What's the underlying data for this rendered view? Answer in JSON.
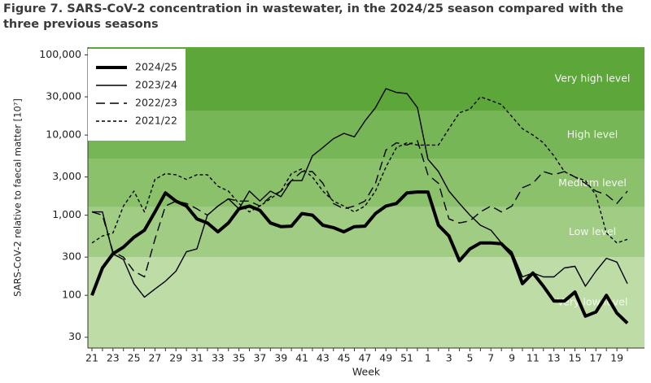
{
  "chart_data": {
    "type": "line",
    "title": "Figure 7. SARS-CoV-2 concentration in wastewater, in the 2024/25 season compared with the three previous seasons",
    "x_label": "Week",
    "y_label": "SARS-CoV-2 relative to faecal matter [10⁷]",
    "log_scale": true,
    "legend": "top-left",
    "categories": [
      "21",
      null,
      "23",
      null,
      "25",
      null,
      "27",
      null,
      "29",
      null,
      "31",
      null,
      "33",
      null,
      "35",
      null,
      "37",
      null,
      "39",
      null,
      "41",
      null,
      "43",
      null,
      "45",
      null,
      "47",
      null,
      "49",
      null,
      "51",
      null,
      "1",
      null,
      "3",
      null,
      "5",
      null,
      "7",
      null,
      "9",
      null,
      "11",
      null,
      "13",
      null,
      "15",
      null,
      "17",
      null,
      "19",
      null
    ],
    "ylim": [
      22,
      125000
    ],
    "yticks": [
      30,
      100,
      300,
      {
        "value": 1000,
        "label": "1,000"
      },
      {
        "value": 3000,
        "label": "3,000"
      },
      {
        "value": 10000,
        "label": "10,000"
      },
      {
        "value": 30000,
        "label": "30,000"
      },
      {
        "value": 100000,
        "label": "100,000"
      }
    ],
    "bands": [
      {
        "label": "Very low level",
        "from": 22,
        "to": 300,
        "color": "#bddca6"
      },
      {
        "label": "Low level",
        "from": 300,
        "to": 1260,
        "color": "#a0cc84"
      },
      {
        "label": "Medium level",
        "from": 1260,
        "to": 5000,
        "color": "#8cc16c"
      },
      {
        "label": "High level",
        "from": 5000,
        "to": 20000,
        "color": "#77b656"
      },
      {
        "label": "Very high level",
        "from": 20000,
        "to": 125000,
        "color": "#5da73a"
      }
    ],
    "series": [
      {
        "name": "2024/25",
        "color": "#000000",
        "line_style": "solid",
        "line_width": "thick",
        "values": [
          100,
          220,
          330,
          400,
          530,
          650,
          1100,
          1900,
          1500,
          1300,
          900,
          800,
          620,
          800,
          1200,
          1300,
          1150,
          800,
          720,
          730,
          1050,
          1000,
          750,
          700,
          620,
          720,
          730,
          1050,
          1300,
          1400,
          1900,
          1950,
          1950,
          750,
          550,
          270,
          380,
          450,
          450,
          440,
          320,
          140,
          190,
          130,
          85,
          85,
          110,
          55,
          62,
          100,
          60,
          45
        ]
      },
      {
        "name": "2023/24",
        "color": "#000000",
        "line_style": "solid",
        "line_width": "thin",
        "values": [
          1100,
          1100,
          330,
          280,
          140,
          95,
          120,
          150,
          200,
          350,
          380,
          1000,
          1300,
          1600,
          1200,
          2000,
          1500,
          2000,
          1700,
          2700,
          2700,
          5500,
          7000,
          9000,
          10500,
          9500,
          15000,
          22000,
          38000,
          34000,
          33000,
          22000,
          5000,
          3500,
          2000,
          1400,
          1000,
          750,
          650,
          450,
          350,
          170,
          190,
          170,
          170,
          220,
          230,
          130,
          200,
          290,
          260,
          140
        ]
      },
      {
        "name": "2022/23",
        "color": "#000000",
        "line_style": "long-dash",
        "line_width": "thin",
        "values": [
          1100,
          1000,
          350,
          300,
          200,
          170,
          500,
          1300,
          1500,
          1400,
          1200,
          1000,
          1300,
          1600,
          1500,
          1500,
          1300,
          1700,
          2000,
          2700,
          3500,
          3500,
          2500,
          1400,
          1200,
          1300,
          1500,
          2500,
          6500,
          8000,
          7500,
          8500,
          3200,
          2500,
          900,
          800,
          850,
          1100,
          1300,
          1100,
          1300,
          2200,
          2500,
          3500,
          3200,
          3500,
          3000,
          2500,
          2000,
          1800,
          1400,
          2000
        ]
      },
      {
        "name": "2021/22",
        "color": "#000000",
        "line_style": "short-dash",
        "line_width": "thin",
        "values": [
          450,
          550,
          600,
          1300,
          2000,
          1100,
          2800,
          3300,
          3200,
          2800,
          3200,
          3200,
          2300,
          2000,
          1400,
          1100,
          1300,
          1600,
          2000,
          3300,
          3800,
          3000,
          2000,
          1500,
          1300,
          1100,
          1300,
          2000,
          4000,
          7000,
          8000,
          7500,
          7500,
          7500,
          12000,
          19000,
          21000,
          30000,
          27000,
          24000,
          17000,
          12000,
          10000,
          8000,
          5500,
          3500,
          3000,
          2700,
          1800,
          600,
          450,
          500
        ]
      }
    ]
  }
}
